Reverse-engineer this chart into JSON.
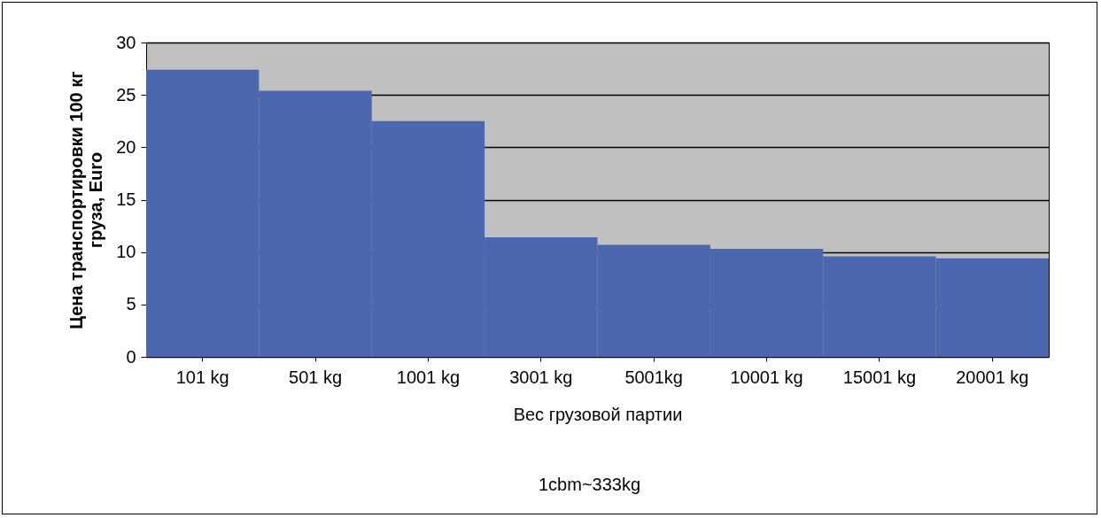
{
  "chart_data": {
    "type": "bar",
    "xlabel": "Вес грузовой партии",
    "ylabel": "Цена транспортировки 100 кг\nгруза, Euro",
    "categories": [
      "101 kg",
      "501 kg",
      "1001 kg",
      "3001 kg",
      "5001kg",
      "10001 kg",
      "15001 kg",
      "20001 kg"
    ],
    "series": [
      {
        "color": "#4a67b0",
        "values": [
          27.4,
          25.4,
          22.5,
          11.4,
          10.7,
          10.3,
          9.6,
          9.4
        ]
      }
    ],
    "ylim": [
      0,
      30
    ],
    "yticks": [
      0,
      5,
      10,
      15,
      20,
      25,
      30
    ],
    "grid": "y",
    "annotations": [
      "1cbm~333kg"
    ]
  }
}
